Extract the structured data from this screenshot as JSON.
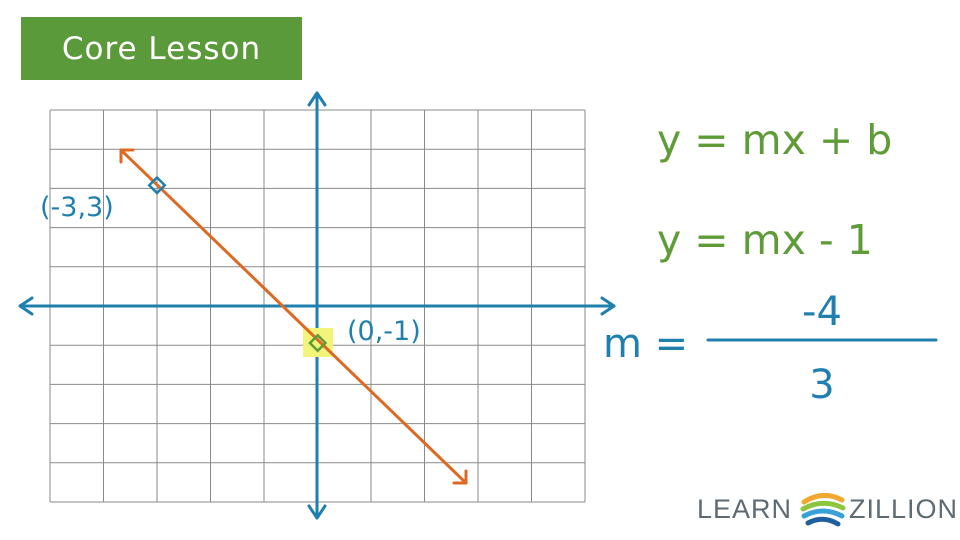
{
  "header": {
    "badge_label": "Core Lesson"
  },
  "graph": {
    "point_a_label": "(-3,3)",
    "point_b_label": "(0,-1)"
  },
  "equations": {
    "general_form": "y = mx + b",
    "with_intercept": "y = mx - 1",
    "slope_prefix": "m =",
    "slope_numerator": "-4",
    "slope_denominator": "3"
  },
  "logo": {
    "left_text": "LEARN",
    "right_text": "ZILLION"
  },
  "colors": {
    "badge_green": "#5b9a3a",
    "axis_blue": "#1f7fae",
    "line_orange": "#dd6a24",
    "equation_green": "#5f9b37",
    "highlight_yellow": "#f2f57a",
    "grid_gray": "#8a8a8a"
  }
}
